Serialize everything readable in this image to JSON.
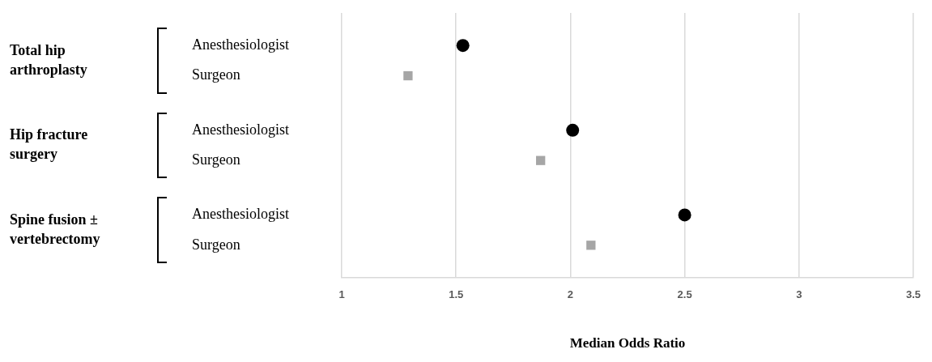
{
  "chart_data": {
    "type": "scatter",
    "orientation": "horizontal",
    "xlabel": "Median Odds Ratio",
    "categories": [
      "Anesthesiologist",
      "Surgeon",
      "Anesthesiologist",
      "Surgeon",
      "Anesthesiologist",
      "Surgeon"
    ],
    "annotations": [
      "Total hip arthroplasty",
      "Hip fracture surgery",
      "Spine fusion ± vertebrectomy"
    ],
    "series": [
      {
        "color": "#000000",
        "marker": "circle",
        "values": [
          1.53,
          null,
          2.01,
          null,
          2.5,
          null
        ]
      },
      {
        "color": "#a6a6a6",
        "marker": "square",
        "values": [
          null,
          1.29,
          null,
          1.87,
          null,
          2.09
        ]
      }
    ],
    "xlim": [
      1,
      3.5
    ],
    "xticks": [
      1,
      1.5,
      2,
      2.5,
      3,
      3.5
    ],
    "grid": "x",
    "legend": false
  }
}
